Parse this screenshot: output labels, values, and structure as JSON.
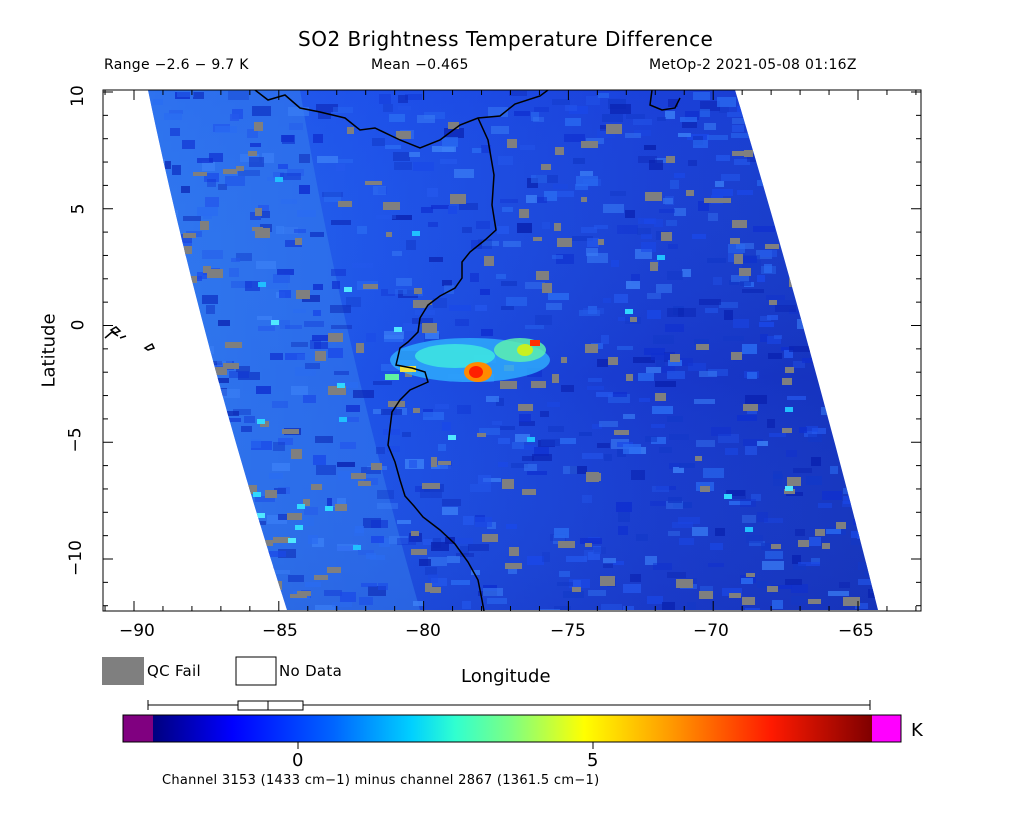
{
  "header": {
    "title": "SO2 Brightness Temperature Difference",
    "range_text": "Range −2.6 − 9.7 K",
    "mean_text": "Mean −0.465",
    "source_text": "MetOp-2 2021-05-08 01:16Z"
  },
  "map": {
    "lon_ticks": [
      "−90",
      "−85",
      "−80",
      "−75",
      "−70",
      "−65"
    ],
    "lat_ticks": [
      "10",
      "5",
      "0",
      "−5",
      "−10"
    ],
    "xlabel": "Longitude",
    "ylabel": "Latitude",
    "lon_range": [
      -91,
      -63
    ],
    "lat_range": [
      -12.2,
      10.1
    ]
  },
  "legend": {
    "qc_fail": "QC Fail",
    "no_data": "No Data",
    "qc_color": "#7f7f7f"
  },
  "colorbar": {
    "unit": "K",
    "tick_0": "0",
    "tick_5": "5",
    "min": -2.6,
    "max": 9.7,
    "under_color": "#800080",
    "over_color": "#ff00ff",
    "note": "Channel 3153 (1433 cm−1) minus channel 2867 (1361.5 cm−1)"
  }
}
